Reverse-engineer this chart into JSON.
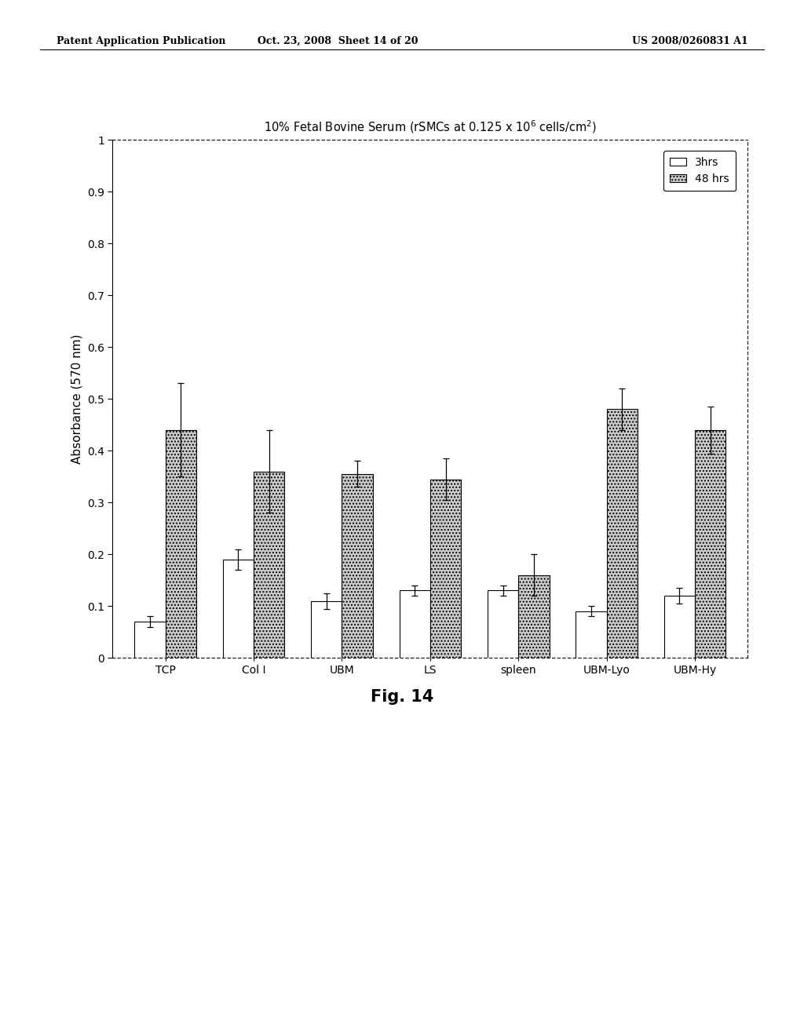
{
  "categories": [
    "TCP",
    "Col I",
    "UBM",
    "LS",
    "spleen",
    "UBM-Lyo",
    "UBM-Hy"
  ],
  "values_3hrs": [
    0.07,
    0.19,
    0.11,
    0.13,
    0.13,
    0.09,
    0.12
  ],
  "values_48hrs": [
    0.44,
    0.36,
    0.355,
    0.345,
    0.16,
    0.48,
    0.44
  ],
  "errors_3hrs": [
    0.01,
    0.02,
    0.015,
    0.01,
    0.01,
    0.01,
    0.015
  ],
  "errors_48hrs": [
    0.09,
    0.08,
    0.025,
    0.04,
    0.04,
    0.04,
    0.045
  ],
  "bar_color_3hrs": "#ffffff",
  "bar_color_48hrs": "#cccccc",
  "bar_hatch_3hrs": "",
  "bar_hatch_48hrs": "....",
  "bar_edgecolor": "#000000",
  "title": "10% Fetal Bovine Serum (rSMCs at 0.125 x 10$^6$ cells/cm$^2$)",
  "ylabel": "Absorbance (570 nm)",
  "ylim": [
    0,
    1.0
  ],
  "yticks": [
    0,
    0.1,
    0.2,
    0.3,
    0.4,
    0.5,
    0.6,
    0.7,
    0.8,
    0.9,
    1
  ],
  "legend_labels": [
    "3hrs",
    "48 hrs"
  ],
  "fig_caption": "Fig. 14",
  "header_left": "Patent Application Publication",
  "header_center": "Oct. 23, 2008  Sheet 14 of 20",
  "header_right": "US 2008/0260831 A1",
  "background_color": "#ffffff",
  "bar_width": 0.35
}
